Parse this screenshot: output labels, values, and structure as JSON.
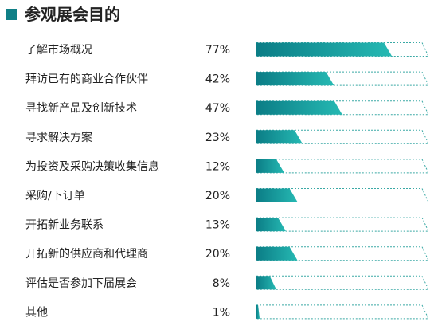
{
  "chart_data": {
    "type": "bar",
    "orientation": "horizontal",
    "title": "参观展会目的",
    "categories": [
      "了解市场概况",
      "拜访已有的商业合作伙伴",
      "寻找新产品及创新技术",
      "寻求解决方案",
      "为投资及采购决策收集信息",
      "采购/下订单",
      "开拓新业务联系",
      "开拓新的供应商和代理商",
      "评估是否参加下届展会",
      "其他"
    ],
    "values": [
      77,
      42,
      47,
      23,
      12,
      20,
      13,
      20,
      8,
      1
    ],
    "value_labels": [
      "77%",
      "42%",
      "47%",
      "23%",
      "12%",
      "20%",
      "13%",
      "20%",
      "8%",
      "1%"
    ],
    "xlim": [
      0,
      100
    ],
    "colors": {
      "bar_start": "#0b7d86",
      "bar_end": "#26b9b3",
      "track": "#3aa9a5",
      "title_square": "#0f7f86"
    }
  }
}
